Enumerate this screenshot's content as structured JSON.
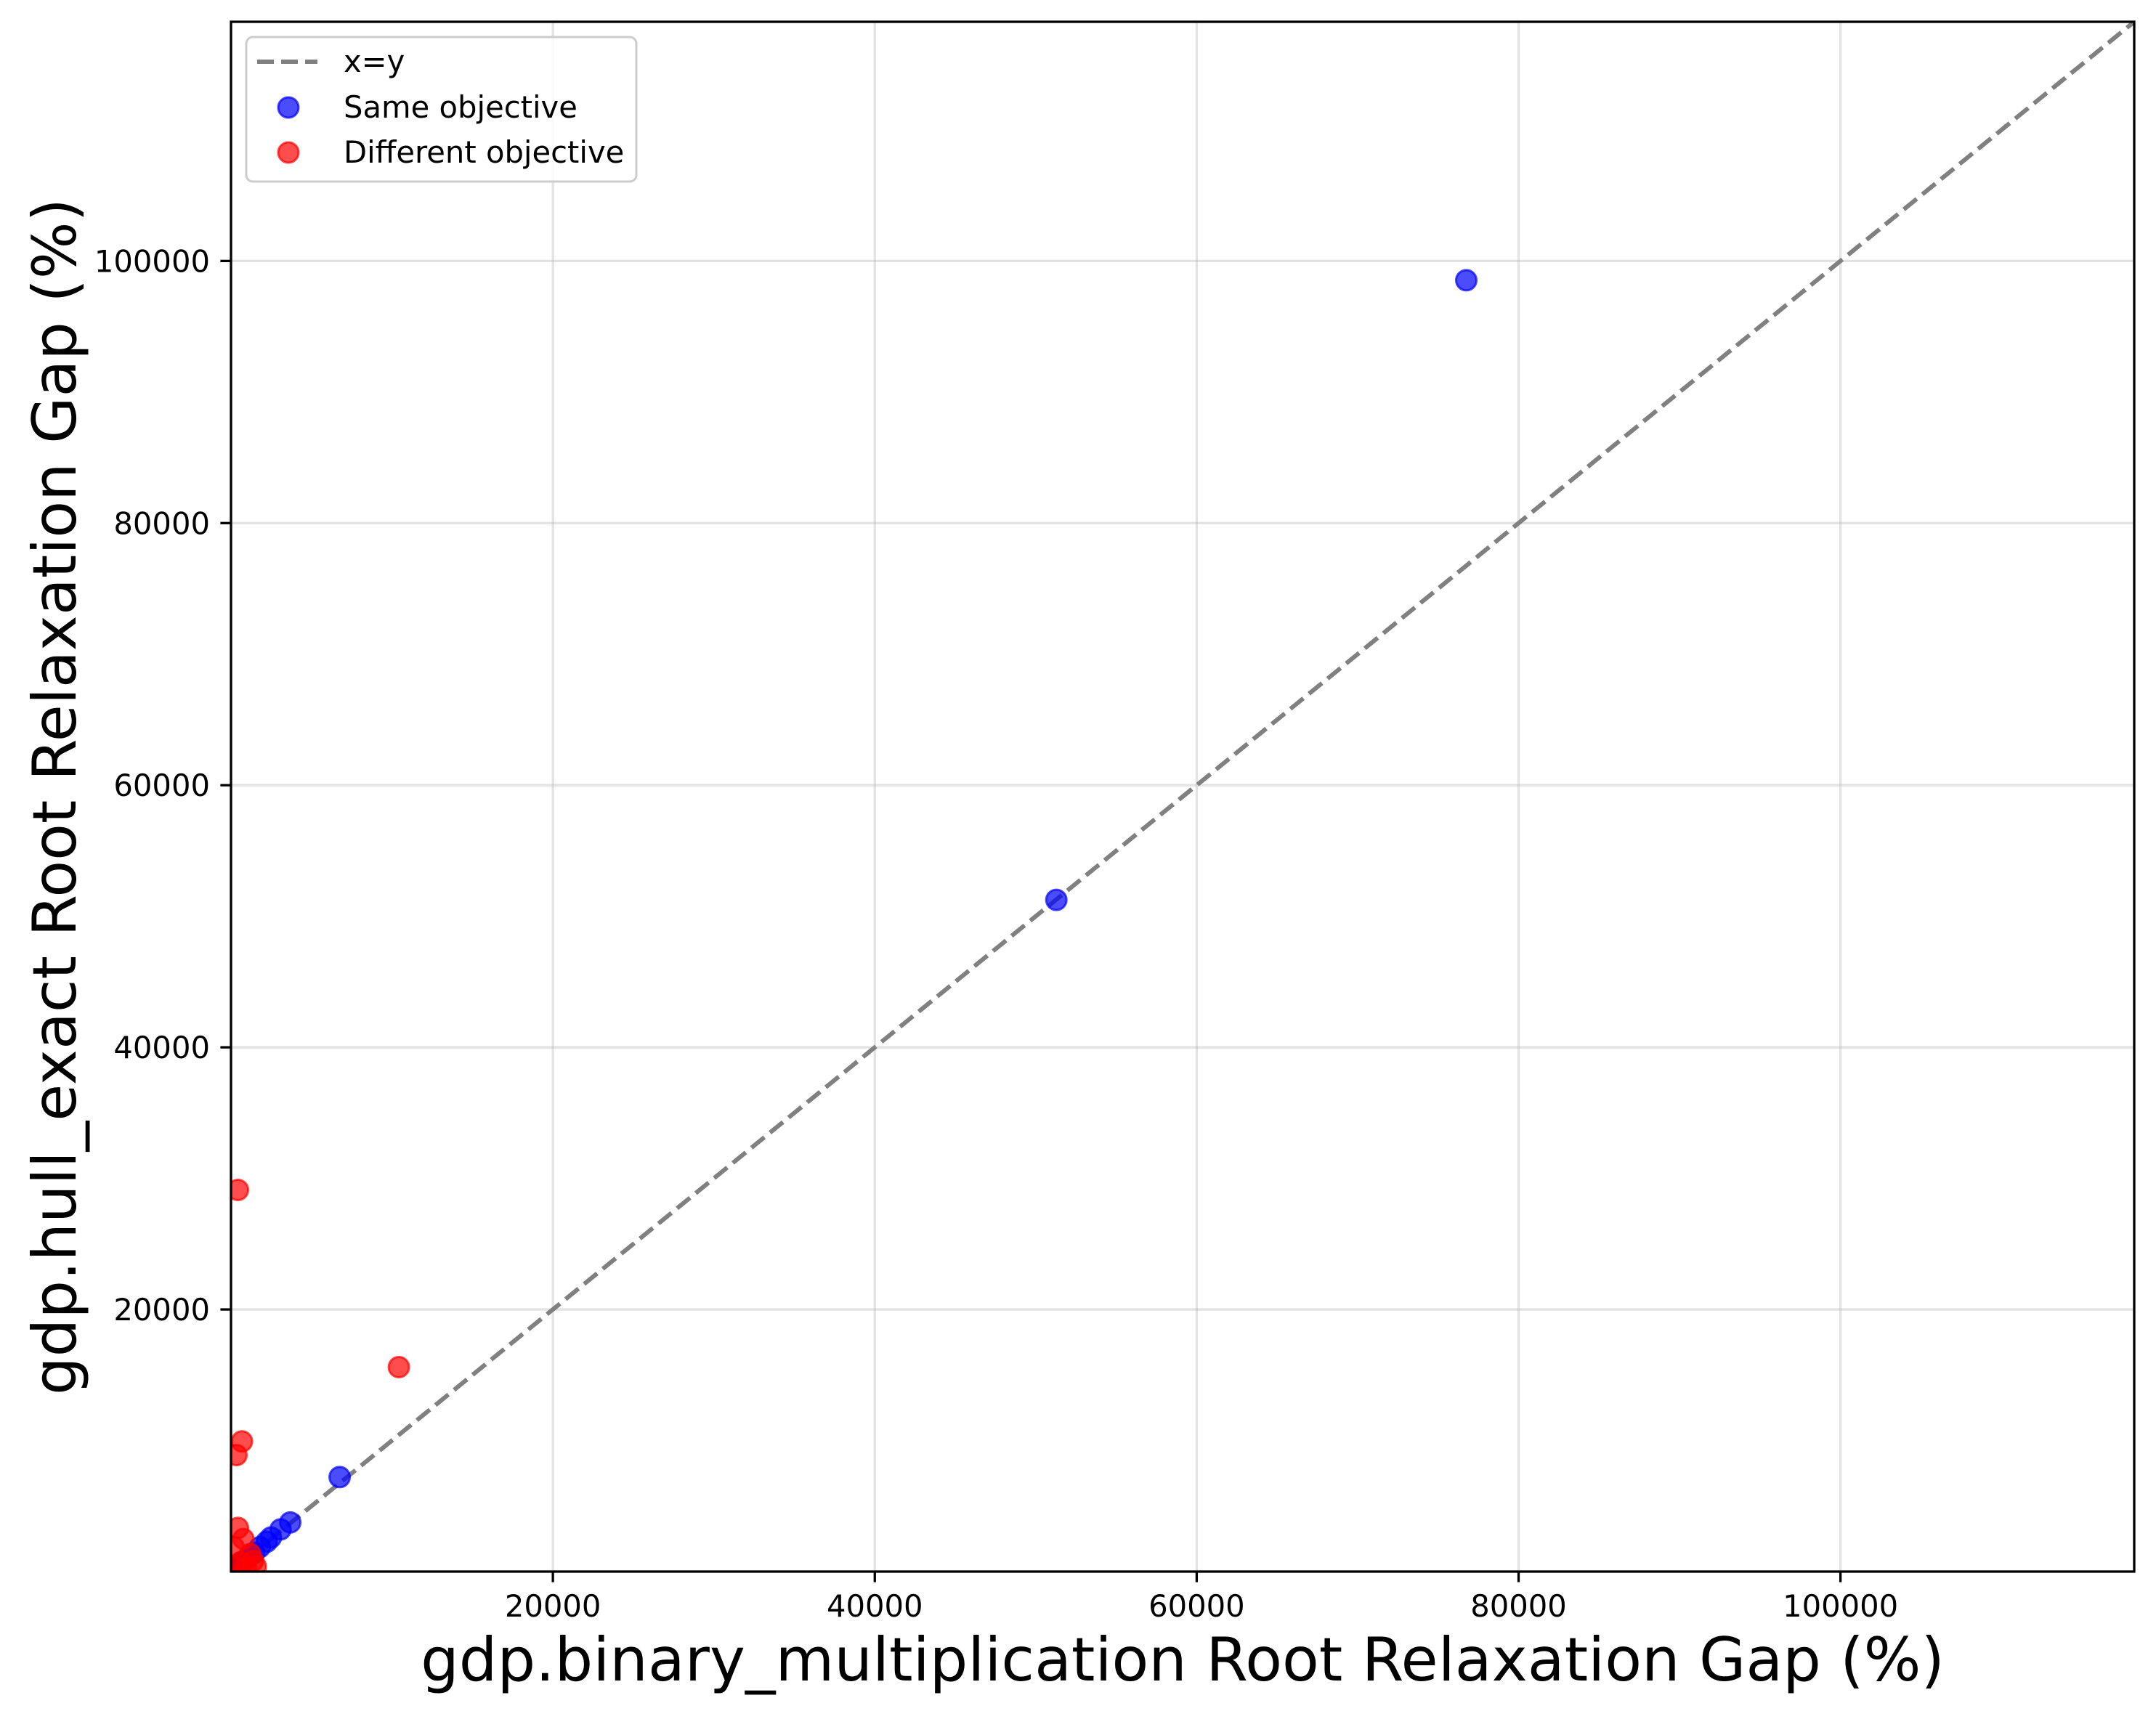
{
  "chart_data": {
    "type": "scatter",
    "xlabel": "gdp.binary_multiplication Root Relaxation Gap (%)",
    "ylabel": "gdp.hull_exact Root Relaxation Gap (%)",
    "xlim": [
      0,
      118250
    ],
    "ylim": [
      0,
      118250
    ],
    "xticks": [
      20000,
      40000,
      60000,
      80000,
      100000
    ],
    "yticks": [
      20000,
      40000,
      60000,
      80000,
      100000
    ],
    "xtick_labels": [
      "20000",
      "40000",
      "60000",
      "80000",
      "100000"
    ],
    "ytick_labels": [
      "20000",
      "40000",
      "60000",
      "80000",
      "100000"
    ],
    "grid": true,
    "legend_position": "upper-left",
    "series": [
      {
        "name": "x=y",
        "type": "line",
        "color": "#808080",
        "x": [
          0,
          118250
        ],
        "y": [
          0,
          118250
        ]
      },
      {
        "name": "Same objective",
        "type": "scatter",
        "color": "#0000ff",
        "x": [
          76750,
          51280,
          6750,
          3680,
          3080,
          2480,
          2220,
          1790,
          1450,
          1030,
          680,
          340,
          90
        ],
        "y": [
          98530,
          51250,
          7210,
          3750,
          3220,
          2600,
          2280,
          1860,
          1440,
          1020,
          700,
          390,
          180
        ]
      },
      {
        "name": "Different objective",
        "type": "scatter",
        "color": "#ff0000",
        "x": [
          430,
          10430,
          680,
          340,
          430,
          770,
          170,
          1200,
          1370,
          600,
          170,
          1540,
          940
        ],
        "y": [
          29120,
          15600,
          9930,
          8890,
          3330,
          2490,
          1860,
          1340,
          810,
          710,
          390,
          390,
          290
        ]
      }
    ]
  }
}
